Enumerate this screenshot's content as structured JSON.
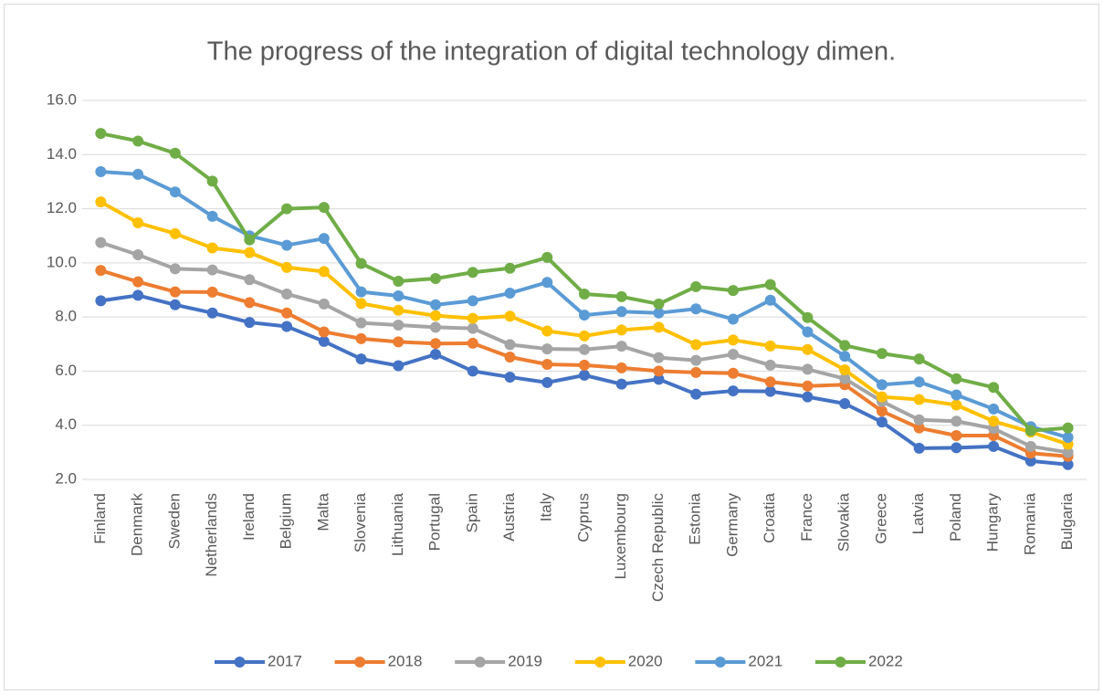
{
  "chart_data": {
    "type": "line",
    "title": "The progress of the integration of digital technology dimen.",
    "categories": [
      "Finland",
      "Denmark",
      "Sweden",
      "Netherlands",
      "Ireland",
      "Belgium",
      "Malta",
      "Slovenia",
      "Lithuania",
      "Portugal",
      "Spain",
      "Austria",
      "Italy",
      "Cyprus",
      "Luxembourg",
      "Czech Republic",
      "Estonia",
      "Germany",
      "Croatia",
      "France",
      "Slovakia",
      "Greece",
      "Latvia",
      "Poland",
      "Hungary",
      "Romania",
      "Bulgaria"
    ],
    "series": [
      {
        "name": "2017",
        "color": "#4472c4",
        "values": [
          8.6,
          8.8,
          8.45,
          8.15,
          7.8,
          7.65,
          7.1,
          6.45,
          6.2,
          6.62,
          6.0,
          5.78,
          5.58,
          5.85,
          5.52,
          5.7,
          5.15,
          5.27,
          5.25,
          5.05,
          4.8,
          4.12,
          3.15,
          3.17,
          3.22,
          2.68,
          2.55
        ]
      },
      {
        "name": "2018",
        "color": "#ed7d31",
        "values": [
          9.72,
          9.3,
          8.93,
          8.92,
          8.53,
          8.15,
          7.45,
          7.2,
          7.08,
          7.02,
          7.03,
          6.52,
          6.25,
          6.22,
          6.12,
          6.0,
          5.95,
          5.92,
          5.6,
          5.45,
          5.5,
          4.52,
          3.9,
          3.62,
          3.62,
          2.97,
          2.85
        ]
      },
      {
        "name": "2019",
        "color": "#a5a5a5",
        "values": [
          10.75,
          10.3,
          9.78,
          9.74,
          9.38,
          8.85,
          8.48,
          7.78,
          7.7,
          7.62,
          7.58,
          6.98,
          6.82,
          6.8,
          6.92,
          6.5,
          6.4,
          6.62,
          6.22,
          6.07,
          5.72,
          4.88,
          4.2,
          4.15,
          3.88,
          3.22,
          3.0
        ]
      },
      {
        "name": "2020",
        "color": "#ffc000",
        "values": [
          12.25,
          11.48,
          11.08,
          10.55,
          10.38,
          9.83,
          9.68,
          8.5,
          8.25,
          8.05,
          7.95,
          8.03,
          7.48,
          7.3,
          7.52,
          7.62,
          6.98,
          7.15,
          6.93,
          6.8,
          6.05,
          5.05,
          4.95,
          4.75,
          4.15,
          3.75,
          3.3
        ]
      },
      {
        "name": "2021",
        "color": "#5b9bd5",
        "values": [
          13.37,
          13.27,
          12.62,
          11.72,
          11.0,
          10.65,
          10.9,
          8.93,
          8.78,
          8.45,
          8.6,
          8.88,
          9.28,
          8.07,
          8.2,
          8.15,
          8.3,
          7.92,
          8.62,
          7.45,
          6.55,
          5.5,
          5.6,
          5.12,
          4.6,
          3.95,
          3.55
        ]
      },
      {
        "name": "2022",
        "color": "#70ad47",
        "values": [
          14.78,
          14.5,
          14.05,
          13.02,
          10.85,
          12.0,
          12.05,
          9.98,
          9.32,
          9.42,
          9.65,
          9.8,
          10.2,
          8.85,
          8.75,
          8.48,
          9.12,
          8.98,
          9.2,
          7.98,
          6.95,
          6.65,
          6.45,
          5.72,
          5.4,
          3.8,
          3.9
        ]
      }
    ],
    "ylim": [
      2,
      16
    ],
    "yticks": [
      {
        "value": 2,
        "label": "2.0"
      },
      {
        "value": 4,
        "label": "4.0"
      },
      {
        "value": 6,
        "label": "6.0"
      },
      {
        "value": 8,
        "label": "8.0"
      },
      {
        "value": 10,
        "label": "10.0"
      },
      {
        "value": 12,
        "label": "12.0"
      },
      {
        "value": 14,
        "label": "14.0"
      },
      {
        "value": 16,
        "label": "16.0"
      }
    ],
    "grid": true,
    "legend": "bottom"
  }
}
